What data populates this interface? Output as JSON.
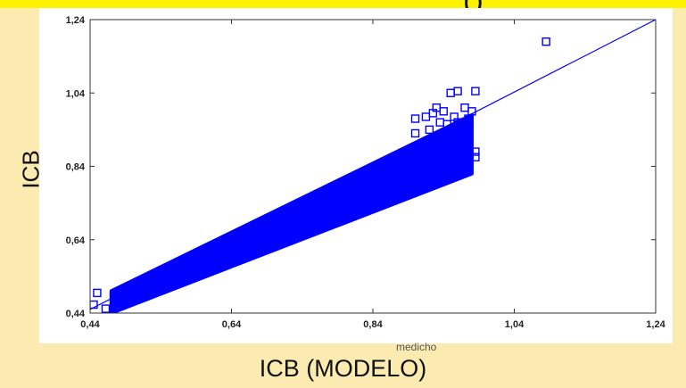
{
  "header": {
    "title_fragment": "(     )"
  },
  "chart_data": {
    "type": "scatter",
    "title": "",
    "xlabel": "ICB  (MODELO)",
    "xlabel_inner": "medicho",
    "ylabel": "ICB",
    "xlim": [
      0.44,
      1.24
    ],
    "ylim": [
      0.44,
      1.24
    ],
    "x_ticks": [
      "0,44",
      "0,64",
      "0,84",
      "1,04",
      "1,24"
    ],
    "y_ticks": [
      "0,44",
      "0,64",
      "0,84",
      "1,04",
      "1,24"
    ],
    "grid": false,
    "marker": "square",
    "series": [
      {
        "name": "",
        "color": "#0000FF",
        "note_dense_band": {
          "x_range": [
            0.47,
            0.98
          ],
          "y_at_x_low": [
            0.44,
            0.5
          ],
          "y_at_x_high": [
            0.82,
            0.98
          ]
        },
        "points": [
          [
            0.445,
            0.463
          ],
          [
            0.45,
            0.495
          ],
          [
            0.462,
            0.452
          ],
          [
            0.475,
            0.47
          ],
          [
            0.93,
            1.0
          ],
          [
            0.95,
            1.04
          ],
          [
            0.96,
            1.045
          ],
          [
            0.985,
            1.045
          ],
          [
            0.94,
            0.99
          ],
          [
            0.955,
            0.975
          ],
          [
            0.97,
            1.0
          ],
          [
            0.98,
            0.99
          ],
          [
            0.9,
            0.97
          ],
          [
            0.915,
            0.975
          ],
          [
            0.925,
            0.985
          ],
          [
            0.935,
            0.96
          ],
          [
            0.945,
            0.955
          ],
          [
            0.96,
            0.96
          ],
          [
            0.975,
            0.97
          ],
          [
            0.9,
            0.93
          ],
          [
            0.92,
            0.94
          ],
          [
            0.94,
            0.93
          ],
          [
            0.955,
            0.91
          ],
          [
            0.965,
            0.89
          ],
          [
            0.94,
            0.885
          ],
          [
            0.955,
            0.87
          ],
          [
            0.97,
            0.87
          ],
          [
            0.985,
            0.88
          ],
          [
            0.985,
            0.865
          ],
          [
            0.93,
            0.905
          ],
          [
            0.91,
            0.9
          ],
          [
            0.935,
            0.87
          ],
          [
            1.085,
            1.18
          ]
        ]
      },
      {
        "name": "",
        "type": "line",
        "color": "#0000FF",
        "x": [
          0.44,
          1.24
        ],
        "y": [
          0.45,
          1.24
        ]
      }
    ]
  }
}
